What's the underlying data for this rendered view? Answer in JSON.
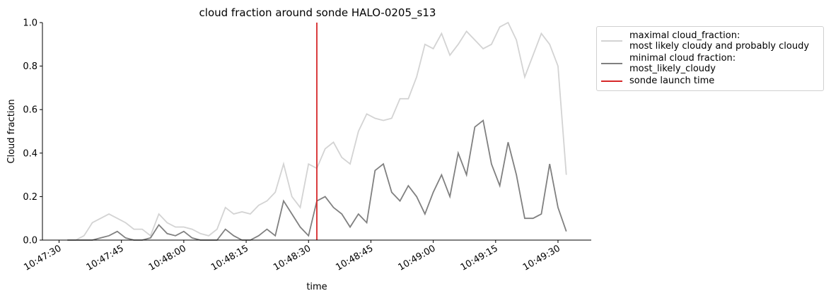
{
  "chart_data": {
    "type": "line",
    "title": "cloud fraction around sonde HALO-0205_s13",
    "x_label": "time",
    "y_label": "Cloud fraction",
    "x": [
      "10:47:32",
      "10:47:34",
      "10:47:36",
      "10:47:38",
      "10:47:40",
      "10:47:42",
      "10:47:44",
      "10:47:46",
      "10:47:48",
      "10:47:50",
      "10:47:52",
      "10:47:54",
      "10:47:56",
      "10:47:58",
      "10:48:00",
      "10:48:02",
      "10:48:04",
      "10:48:06",
      "10:48:08",
      "10:48:10",
      "10:48:12",
      "10:48:14",
      "10:48:16",
      "10:48:18",
      "10:48:20",
      "10:48:22",
      "10:48:24",
      "10:48:26",
      "10:48:28",
      "10:48:30",
      "10:48:32",
      "10:48:34",
      "10:48:36",
      "10:48:38",
      "10:48:40",
      "10:48:42",
      "10:48:44",
      "10:48:46",
      "10:48:48",
      "10:48:50",
      "10:48:52",
      "10:48:54",
      "10:48:56",
      "10:48:58",
      "10:49:00",
      "10:49:02",
      "10:49:04",
      "10:49:06",
      "10:49:08",
      "10:49:10",
      "10:49:12",
      "10:49:14",
      "10:49:16",
      "10:49:18",
      "10:49:20",
      "10:49:22",
      "10:49:24",
      "10:49:26",
      "10:49:28",
      "10:49:30",
      "10:49:32"
    ],
    "series": [
      {
        "name": "maximal cloud_fraction:\nmost likely cloudy and probably cloudy",
        "color": "#d3d3d3",
        "values": [
          0,
          0,
          0.02,
          0.08,
          0.1,
          0.12,
          0.1,
          0.08,
          0.05,
          0.05,
          0.02,
          0.12,
          0.08,
          0.06,
          0.06,
          0.05,
          0.03,
          0.02,
          0.05,
          0.15,
          0.12,
          0.13,
          0.12,
          0.16,
          0.18,
          0.22,
          0.35,
          0.2,
          0.15,
          0.35,
          0.33,
          0.42,
          0.45,
          0.38,
          0.35,
          0.5,
          0.58,
          0.56,
          0.55,
          0.56,
          0.65,
          0.65,
          0.75,
          0.9,
          0.88,
          0.95,
          0.85,
          0.9,
          0.96,
          0.92,
          0.88,
          0.9,
          0.98,
          1.0,
          0.92,
          0.75,
          0.85,
          0.95,
          0.9,
          0.8,
          0.3
        ]
      },
      {
        "name": "minimal cloud fraction:\nmost_likely_cloudy",
        "color": "#808080",
        "values": [
          0,
          0,
          0,
          0,
          0.01,
          0.02,
          0.04,
          0.01,
          0,
          0,
          0.01,
          0.07,
          0.03,
          0.02,
          0.04,
          0.01,
          0,
          0,
          0,
          0.05,
          0.02,
          0,
          0,
          0.02,
          0.05,
          0.02,
          0.18,
          0.12,
          0.06,
          0.02,
          0.18,
          0.2,
          0.15,
          0.12,
          0.06,
          0.12,
          0.08,
          0.32,
          0.35,
          0.22,
          0.18,
          0.25,
          0.2,
          0.12,
          0.22,
          0.3,
          0.2,
          0.4,
          0.3,
          0.52,
          0.55,
          0.35,
          0.25,
          0.45,
          0.3,
          0.1,
          0.1,
          0.12,
          0.35,
          0.15,
          0.04
        ]
      }
    ],
    "vline": {
      "name": "sonde launch time",
      "color": "#d62728",
      "x": "10:48:32"
    },
    "xlim": [
      "10:47:26",
      "10:49:38"
    ],
    "xticks": [
      "10:47:30",
      "10:47:45",
      "10:48:00",
      "10:48:15",
      "10:48:30",
      "10:48:45",
      "10:49:00",
      "10:49:15",
      "10:49:30"
    ],
    "ylim": [
      0,
      1
    ],
    "yticks": [
      {
        "value": 0,
        "label": "0.0"
      },
      {
        "value": 0.2,
        "label": "0.2"
      },
      {
        "value": 0.4,
        "label": "0.4"
      },
      {
        "value": 0.6,
        "label": "0.6"
      },
      {
        "value": 0.8,
        "label": "0.8"
      },
      {
        "value": 1,
        "label": "1.0"
      }
    ],
    "legend": "upper right outside"
  }
}
